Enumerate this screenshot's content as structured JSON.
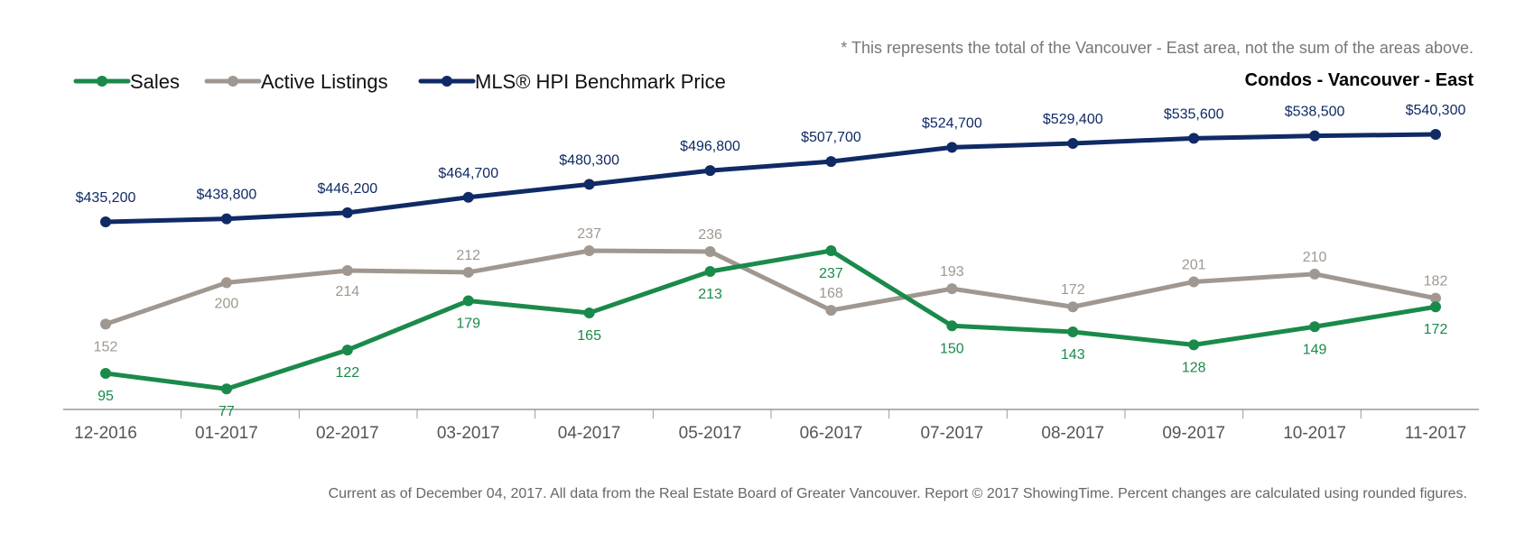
{
  "note": "* This represents the total of the Vancouver - East area, not the sum of the areas above.",
  "footer": "Current as of December 04, 2017. All data from the Real Estate Board of Greater Vancouver. Report © 2017 ShowingTime. Percent changes are calculated using rounded figures.",
  "colors": {
    "sales": "#1a8a4a",
    "active_listings": "#a09890",
    "benchmark_price": "#102a66",
    "axis": "#999999",
    "tick_text": "#555555",
    "note_text": "#777777",
    "title_text": "#000000",
    "legend_text": "#111111",
    "footer_text": "#666666"
  },
  "chart_data": {
    "type": "line",
    "title": "Condos - Vancouver - East",
    "legend_position": "top-left",
    "grid": false,
    "categories": [
      "12-2016",
      "01-2017",
      "02-2017",
      "03-2017",
      "04-2017",
      "05-2017",
      "06-2017",
      "07-2017",
      "08-2017",
      "09-2017",
      "10-2017",
      "11-2017"
    ],
    "series": [
      {
        "name": "Sales",
        "key": "sales",
        "values": [
          95,
          77,
          122,
          179,
          165,
          213,
          237,
          150,
          143,
          128,
          149,
          172
        ],
        "labels": [
          "95",
          "77",
          "122",
          "179",
          "165",
          "213",
          "237",
          "150",
          "143",
          "128",
          "149",
          "172"
        ]
      },
      {
        "name": "Active Listings",
        "key": "active_listings",
        "values": [
          152,
          200,
          214,
          212,
          237,
          236,
          168,
          193,
          172,
          201,
          210,
          182
        ],
        "labels": [
          "152",
          "200",
          "214",
          "212",
          "237",
          "236",
          "168",
          "193",
          "172",
          "201",
          "210",
          "182"
        ]
      },
      {
        "name": "MLS® HPI Benchmark Price",
        "key": "benchmark_price",
        "values": [
          435200,
          438800,
          446200,
          464700,
          480300,
          496800,
          507700,
          524700,
          529400,
          535600,
          538500,
          540300
        ],
        "labels": [
          "$435,200",
          "$438,800",
          "$446,200",
          "$464,700",
          "$480,300",
          "$496,800",
          "$507,700",
          "$524,700",
          "$529,400",
          "$535,600",
          "$538,500",
          "$540,300"
        ]
      }
    ]
  }
}
